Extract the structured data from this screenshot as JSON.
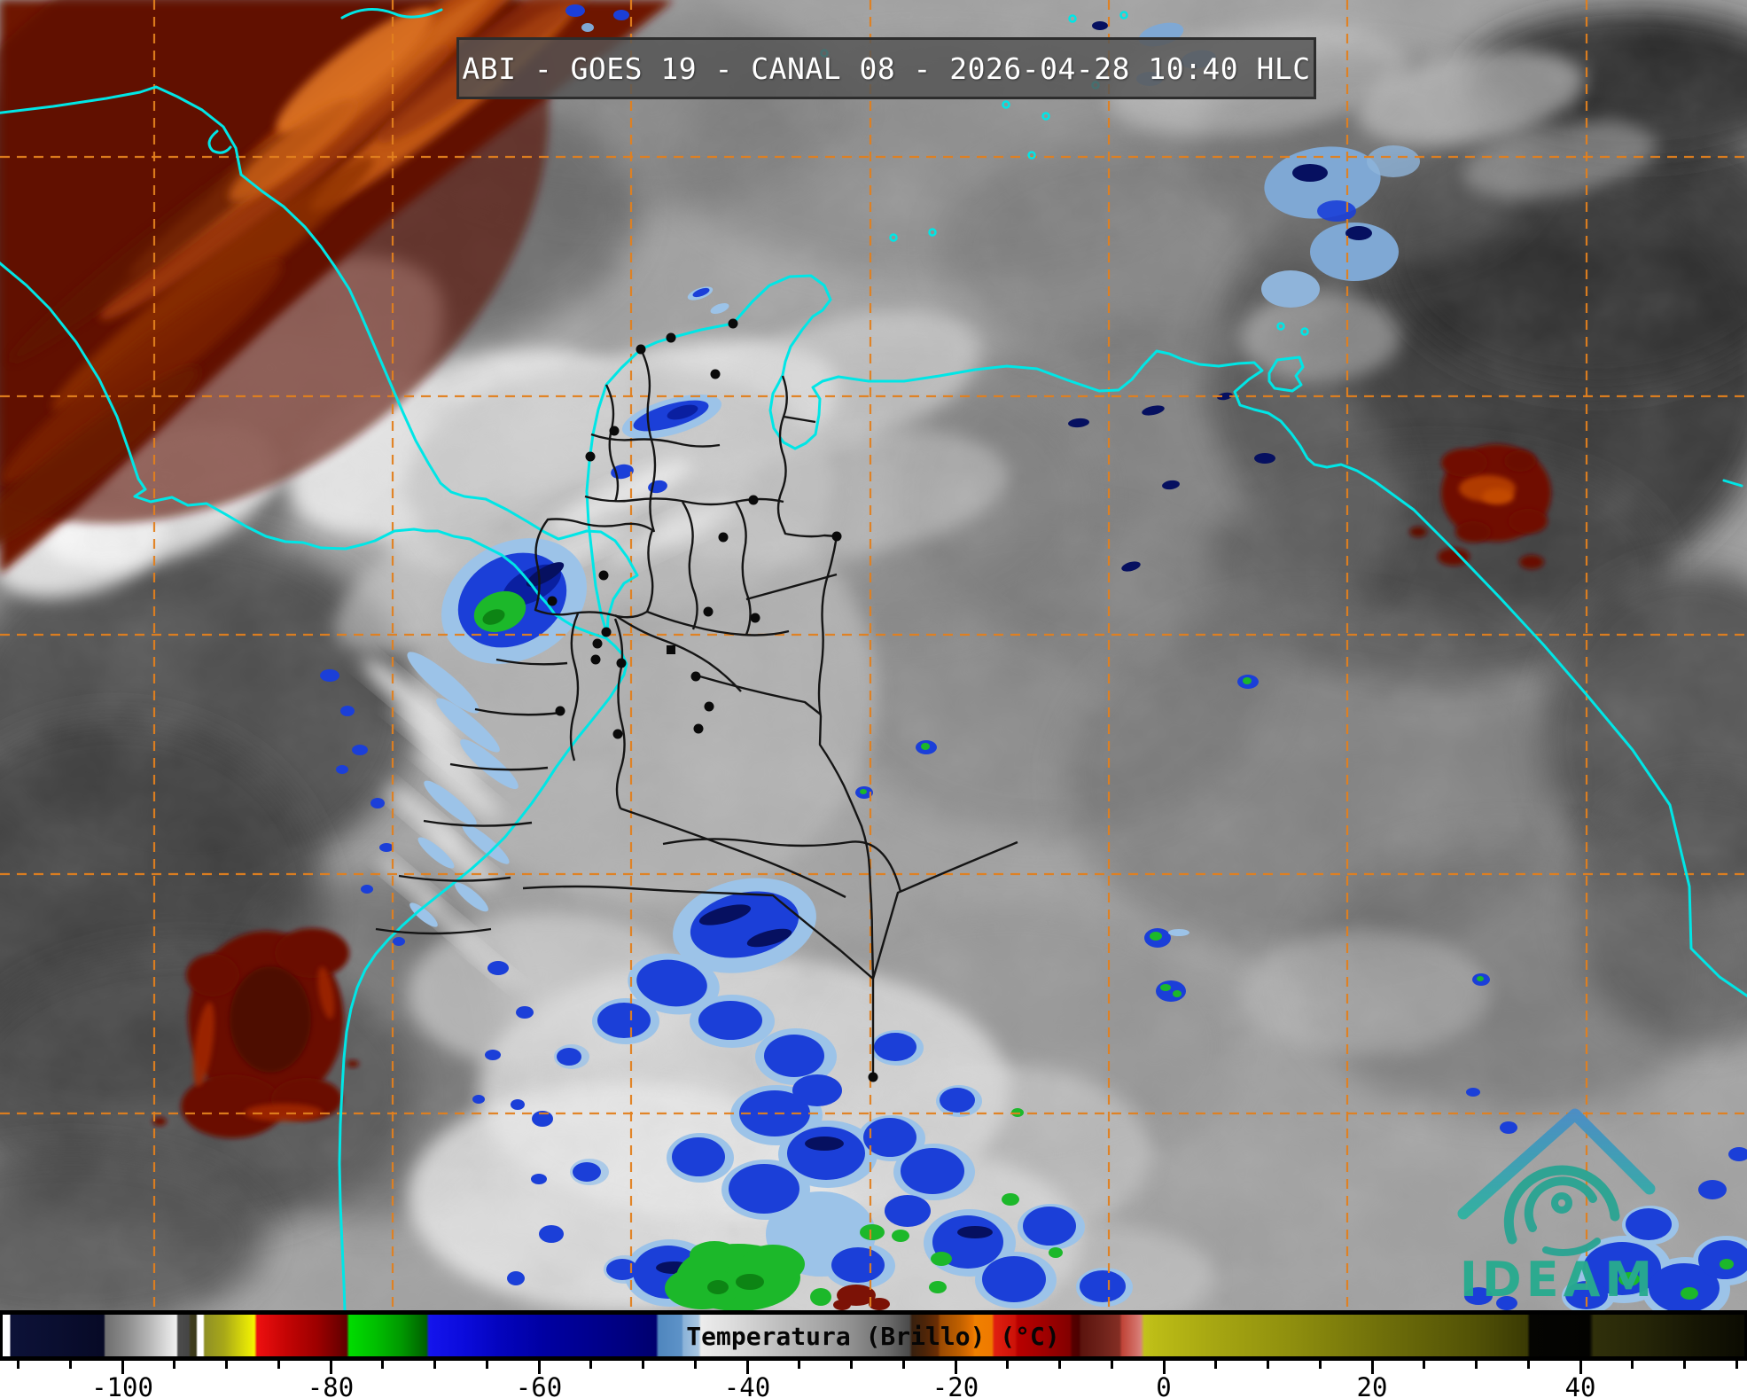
{
  "header": {
    "title": "ABI - GOES 19 - CANAL 08 - 2026-04-28 10:40 HLC"
  },
  "colorbar": {
    "title": "Temperatura (Brillo) (°C)",
    "unit": "°C",
    "tick_labels": [
      "-100",
      "-80",
      "-60",
      "-40",
      "-20",
      "0",
      "20",
      "40"
    ]
  },
  "logo": {
    "text": "IDEAM"
  },
  "colors": {
    "coastline_cyan": "#00e6e6",
    "graticule_orange": "#e2801e",
    "border_black": "#151515",
    "logo_teal": "#28ab8f",
    "warm_red": "#6e1402",
    "cold_blue": "#1b3fd8",
    "cold_green": "#1cb82a",
    "titlebar_bg": "rgba(84,84,84,0.82)"
  }
}
